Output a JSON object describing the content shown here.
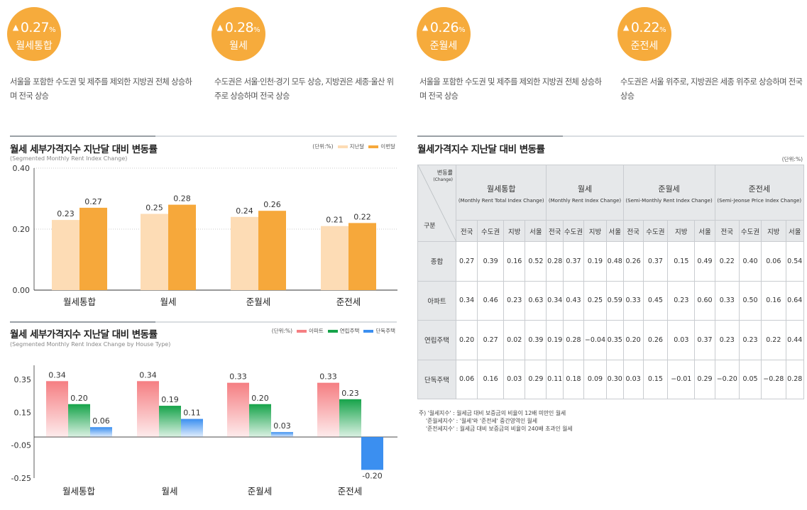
{
  "cards": [
    {
      "arrow": "▲",
      "value": "0.27",
      "unit": "%",
      "label": "월세통합",
      "desc": "서울을 포함한 수도권 및 제주를 제외한 지방권 전체 상승하며 전국 상승"
    },
    {
      "arrow": "▲",
      "value": "0.28",
      "unit": "%",
      "label": "월세",
      "desc": "수도권은 서울·인천·경기 모두 상승, 지방권은 세종·울산 위주로 상승하며 전국 상승"
    },
    {
      "arrow": "▲",
      "value": "0.26",
      "unit": "%",
      "label": "준월세",
      "desc": "서울을 포함한 수도권 및 제주를 제외한 지방권 전체 상승하며 전국 상승"
    },
    {
      "arrow": "▲",
      "value": "0.22",
      "unit": "%",
      "label": "준전세",
      "desc": "수도권은 서울 위주로, 지방권은 세종 위주로 상승하며 전국 상승"
    }
  ],
  "chart_data": [
    {
      "type": "bar",
      "title": "월세 세부가격지수 지난달 대비 변동률",
      "subtitle": "(Segmented Monthly Rent Index Change)",
      "unit": "(단위:%)",
      "categories": [
        "월세통합",
        "월세",
        "준월세",
        "준전세"
      ],
      "yticks": [
        "0.40",
        "0.20",
        "0.00"
      ],
      "ylim": [
        0,
        0.4
      ],
      "grid": true,
      "legend": "top-right",
      "series": [
        {
          "name": "지난달",
          "color": "#fddcb5",
          "values": [
            0.23,
            0.25,
            0.24,
            0.21
          ]
        },
        {
          "name": "이번달",
          "color": "#f6a83b",
          "values": [
            0.27,
            0.28,
            0.26,
            0.22
          ]
        }
      ]
    },
    {
      "type": "bar",
      "title": "월세 세부가격지수 지난달 대비 변동률",
      "subtitle": "(Segmented Monthly Rent Index Change by House Type)",
      "unit": "(단위:%)",
      "categories": [
        "월세통합",
        "월세",
        "준월세",
        "준전세"
      ],
      "yticks": [
        "0.35",
        "0.15",
        "-0.05",
        "-0.25"
      ],
      "ylim": [
        -0.25,
        0.35
      ],
      "grid": false,
      "legend": "top-right",
      "series": [
        {
          "name": "아파트",
          "color": "#f57e82",
          "values": [
            0.34,
            0.34,
            0.33,
            0.33
          ]
        },
        {
          "name": "연립주택",
          "color": "#16a34a",
          "values": [
            0.2,
            0.19,
            0.2,
            0.23
          ]
        },
        {
          "name": "단독주택",
          "color": "#3b8ff0",
          "values": [
            0.06,
            0.11,
            0.03,
            -0.2
          ]
        }
      ]
    }
  ],
  "table": {
    "title": "월세가격지수 지난달 대비 변동률",
    "unit": "(단위:%)",
    "corner_top": "변동률",
    "corner_top_en": "(Change)",
    "corner_bottom": "구분",
    "groups": [
      {
        "ko": "월세통합",
        "en": "(Monthly Rent Total Index Change)"
      },
      {
        "ko": "월세",
        "en": "(Monthly Rent Index Change)"
      },
      {
        "ko": "준월세",
        "en": "(Semi-Monthly Rent Index Change)"
      },
      {
        "ko": "준전세",
        "en": "(Semi-Jeonse Price Index Change)"
      }
    ],
    "subcols": [
      "전국",
      "수도권",
      "지방",
      "서울"
    ],
    "rows": [
      {
        "label": "종합",
        "values": [
          "0.27",
          "0.39",
          "0.16",
          "0.52",
          "0.28",
          "0.37",
          "0.19",
          "0.48",
          "0.26",
          "0.37",
          "0.15",
          "0.49",
          "0.22",
          "0.40",
          "0.06",
          "0.54"
        ]
      },
      {
        "label": "아파트",
        "values": [
          "0.34",
          "0.46",
          "0.23",
          "0.63",
          "0.34",
          "0.43",
          "0.25",
          "0.59",
          "0.33",
          "0.45",
          "0.23",
          "0.60",
          "0.33",
          "0.50",
          "0.16",
          "0.64"
        ]
      },
      {
        "label": "연립주택",
        "values": [
          "0.20",
          "0.27",
          "0.02",
          "0.39",
          "0.19",
          "0.28",
          "−0.04",
          "0.35",
          "0.20",
          "0.26",
          "0.03",
          "0.37",
          "0.23",
          "0.23",
          "0.22",
          "0.44"
        ]
      },
      {
        "label": "단독주택",
        "values": [
          "0.06",
          "0.16",
          "0.03",
          "0.29",
          "0.11",
          "0.18",
          "0.09",
          "0.30",
          "0.03",
          "0.15",
          "−0.01",
          "0.29",
          "−0.20",
          "0.05",
          "−0.28",
          "0.28"
        ]
      }
    ]
  },
  "notes": [
    "주) '월세지수' : 월세금 대비 보증금의 비율이 12배 미만인 월세",
    "'준월세지수' : '월세'와 '준전세' 중간영역인 월세",
    "'준전세지수' : 월세금 대비 보증금의 비율이 240배 초과인 월세"
  ]
}
